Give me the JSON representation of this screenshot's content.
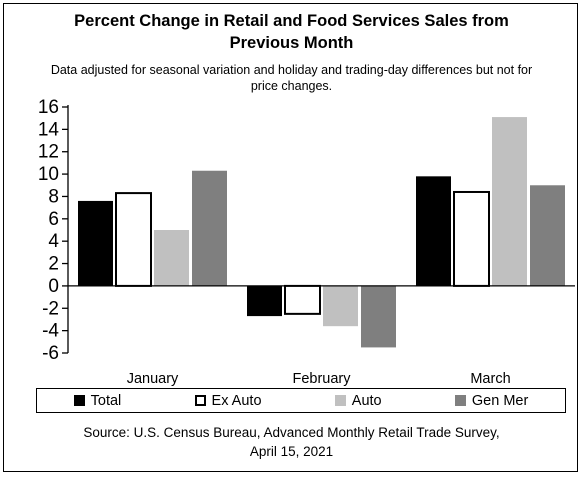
{
  "chart_data": {
    "type": "bar",
    "title_line1": "Percent Change in Retail and Food Services Sales from",
    "title_line2": "Previous Month",
    "subtitle_line1": "Data adjusted for seasonal variation and holiday and trading-day differences but not for",
    "subtitle_line2": "price changes.",
    "categories": [
      "January",
      "February",
      "March"
    ],
    "series": [
      {
        "name": "Total",
        "values": [
          7.6,
          -2.7,
          9.8
        ],
        "color": "#000000"
      },
      {
        "name": "Ex Auto",
        "values": [
          8.3,
          -2.5,
          8.4
        ],
        "color": "#ffffff"
      },
      {
        "name": "Auto",
        "values": [
          5.0,
          -3.6,
          15.1
        ],
        "color": "#c0c0c0"
      },
      {
        "name": "Gen Mer",
        "values": [
          10.3,
          -5.5,
          9.0
        ],
        "color": "#7f7f7f"
      }
    ],
    "ylim": [
      -6,
      16
    ],
    "yticks": [
      "16",
      "14",
      "12",
      "10",
      "8",
      "6",
      "4",
      "2",
      "0",
      "-2",
      "-4",
      "-6"
    ],
    "legend_position": "bottom",
    "grid": false,
    "source_line1": "Source: U.S. Census Bureau, Advanced Monthly Retail Trade Survey,",
    "source_line2": "April 15, 2021"
  }
}
